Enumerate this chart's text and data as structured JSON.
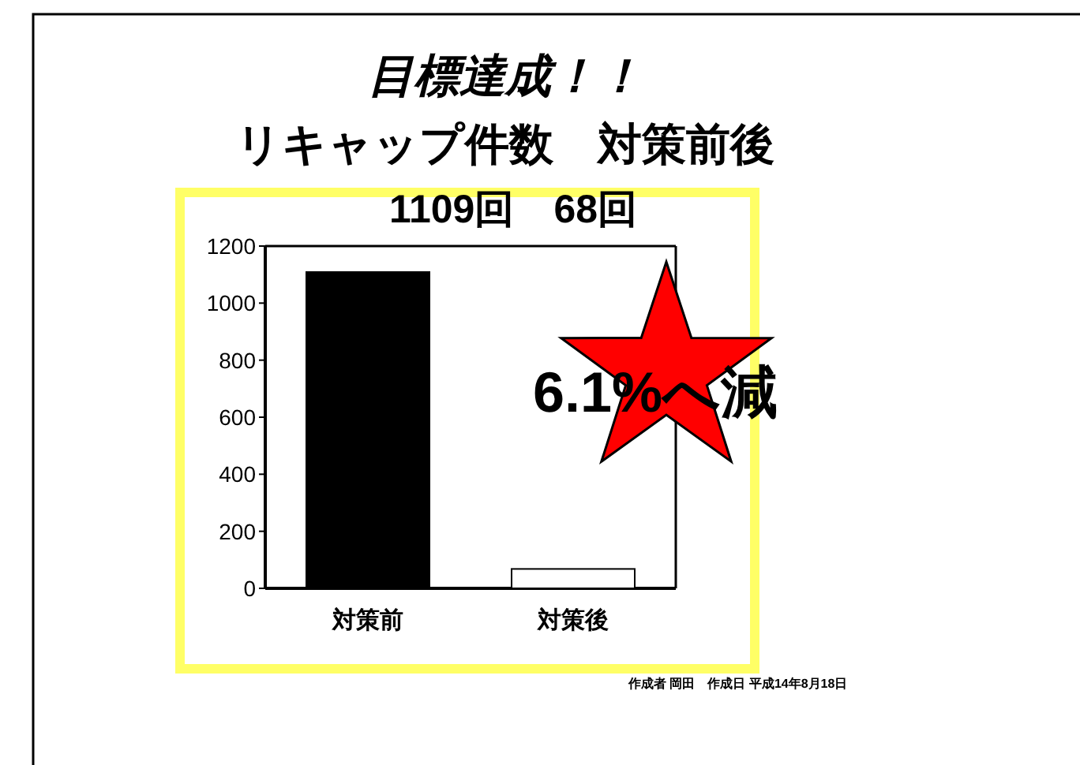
{
  "chart_data": {
    "type": "bar",
    "title": "目標達成！！",
    "subtitle": "リキャップ件数　対策前後",
    "categories": [
      "対策前",
      "対策後"
    ],
    "values": [
      1109,
      68
    ],
    "colors": [
      "#000000",
      "#ffffff"
    ],
    "ylim": [
      0,
      1200
    ],
    "yticks": [
      0,
      200,
      400,
      600,
      800,
      1000,
      1200
    ],
    "annotations": [
      "1109回　68回",
      "6.1%へ減",
      "作成者 岡田　作成日 平成14年8月18日"
    ]
  }
}
